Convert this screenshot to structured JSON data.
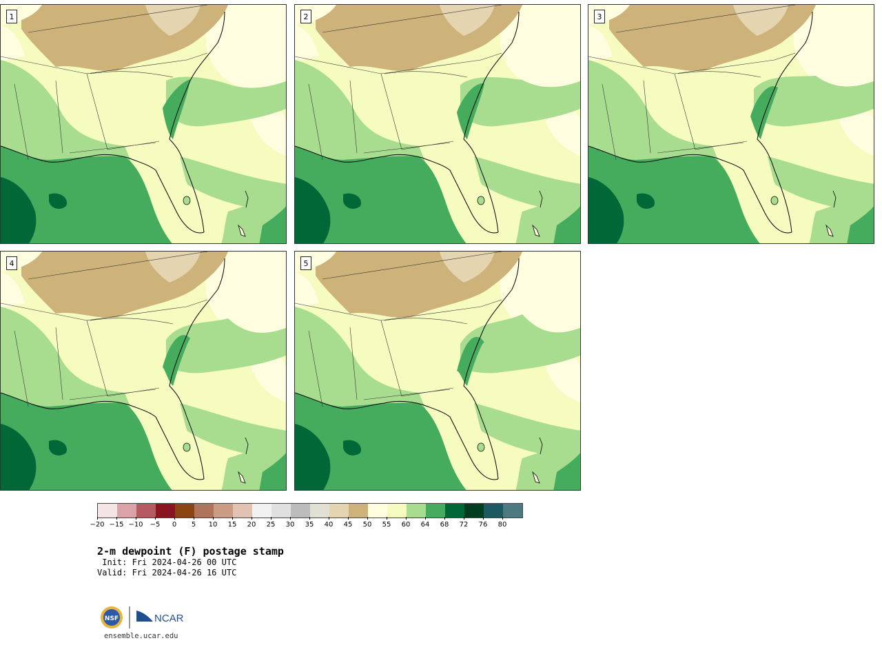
{
  "panels": [
    {
      "label": "1"
    },
    {
      "label": "2"
    },
    {
      "label": "3"
    },
    {
      "label": "4"
    },
    {
      "label": "5"
    }
  ],
  "colorbar": {
    "colors": [
      "#f4e4e4",
      "#d9a3a8",
      "#b55a61",
      "#8a1420",
      "#8b4513",
      "#b0745a",
      "#c99c83",
      "#e2c3b3",
      "#f2f2f2",
      "#e0e0e0",
      "#bcbcbc",
      "#e0e0d4",
      "#e4d4b0",
      "#cdb27a",
      "#fffde0",
      "#f6fbbf",
      "#a8dd8f",
      "#45ab5d",
      "#006837",
      "#003d20",
      "#1b5a63",
      "#4d7a80"
    ],
    "ticks": [
      "−20",
      "−15",
      "−10",
      "−5",
      "0",
      "5",
      "10",
      "15",
      "20",
      "25",
      "30",
      "35",
      "40",
      "45",
      "50",
      "55",
      "60",
      "64",
      "68",
      "72",
      "76",
      "80"
    ]
  },
  "title": "2-m dewpoint (F) postage stamp",
  "init": " Init: Fri 2024-04-26 00 UTC",
  "valid": "Valid: Fri 2024-04-26 16 UTC",
  "logo": {
    "nsf": "NSF",
    "ncar": "NCAR"
  },
  "url": "ensemble.ucar.edu"
}
